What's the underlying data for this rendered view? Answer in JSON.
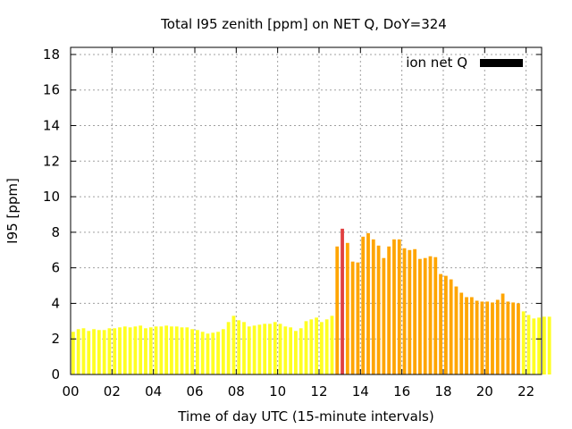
{
  "chart_data": {
    "type": "bar",
    "title": "Total I95 zenith [ppm] on NET Q, DoY=324",
    "xlabel": "Time of day UTC (15-minute intervals)",
    "ylabel": "I95 [ppm]",
    "xlim": [
      0,
      22.75
    ],
    "ylim": [
      0,
      18.4
    ],
    "yticks": [
      0,
      2,
      4,
      6,
      8,
      10,
      12,
      14,
      16,
      18
    ],
    "xticks": [
      0,
      2,
      4,
      6,
      8,
      10,
      12,
      14,
      16,
      18,
      20,
      22
    ],
    "xtick_labels": [
      "00",
      "02",
      "04",
      "06",
      "08",
      "10",
      "12",
      "14",
      "16",
      "18",
      "20",
      "22"
    ],
    "bin_hours": 0.25,
    "legend": {
      "label": "ion net Q",
      "color": "#000000",
      "position": "top-right"
    },
    "colors": {
      "low": "#ffff22",
      "medium": "#ffa500",
      "high": "#e04040"
    },
    "values": [
      2.4,
      2.55,
      2.6,
      2.45,
      2.55,
      2.5,
      2.5,
      2.6,
      2.6,
      2.65,
      2.7,
      2.65,
      2.7,
      2.75,
      2.6,
      2.65,
      2.7,
      2.7,
      2.75,
      2.7,
      2.7,
      2.65,
      2.65,
      2.55,
      2.5,
      2.4,
      2.3,
      2.35,
      2.4,
      2.55,
      2.95,
      3.3,
      3.05,
      2.95,
      2.7,
      2.75,
      2.8,
      2.85,
      2.85,
      2.95,
      2.85,
      2.7,
      2.65,
      2.45,
      2.6,
      3.0,
      3.1,
      3.2,
      2.95,
      3.1,
      3.3,
      7.2,
      8.2,
      7.4,
      6.35,
      6.3,
      7.75,
      7.95,
      7.6,
      7.25,
      6.55,
      7.2,
      7.6,
      7.6,
      7.1,
      7.0,
      7.05,
      6.5,
      6.55,
      6.65,
      6.6,
      5.65,
      5.55,
      5.35,
      4.95,
      4.6,
      4.35,
      4.35,
      4.15,
      4.1,
      4.1,
      4.05,
      4.2,
      4.55,
      4.1,
      4.05,
      4.0,
      3.55,
      3.35,
      3.15,
      3.2,
      3.25,
      3.25
    ],
    "levels": [
      "low",
      "low",
      "low",
      "low",
      "low",
      "low",
      "low",
      "low",
      "low",
      "low",
      "low",
      "low",
      "low",
      "low",
      "low",
      "low",
      "low",
      "low",
      "low",
      "low",
      "low",
      "low",
      "low",
      "low",
      "low",
      "low",
      "low",
      "low",
      "low",
      "low",
      "low",
      "low",
      "low",
      "low",
      "low",
      "low",
      "low",
      "low",
      "low",
      "low",
      "low",
      "low",
      "low",
      "low",
      "low",
      "low",
      "low",
      "low",
      "low",
      "low",
      "low",
      "medium",
      "high",
      "medium",
      "medium",
      "medium",
      "medium",
      "medium",
      "medium",
      "medium",
      "medium",
      "medium",
      "medium",
      "medium",
      "medium",
      "medium",
      "medium",
      "medium",
      "medium",
      "medium",
      "medium",
      "medium",
      "medium",
      "medium",
      "medium",
      "medium",
      "medium",
      "medium",
      "medium",
      "medium",
      "medium",
      "medium",
      "medium",
      "medium",
      "medium",
      "medium",
      "medium",
      "low",
      "low",
      "low",
      "low",
      "low",
      "low"
    ]
  }
}
